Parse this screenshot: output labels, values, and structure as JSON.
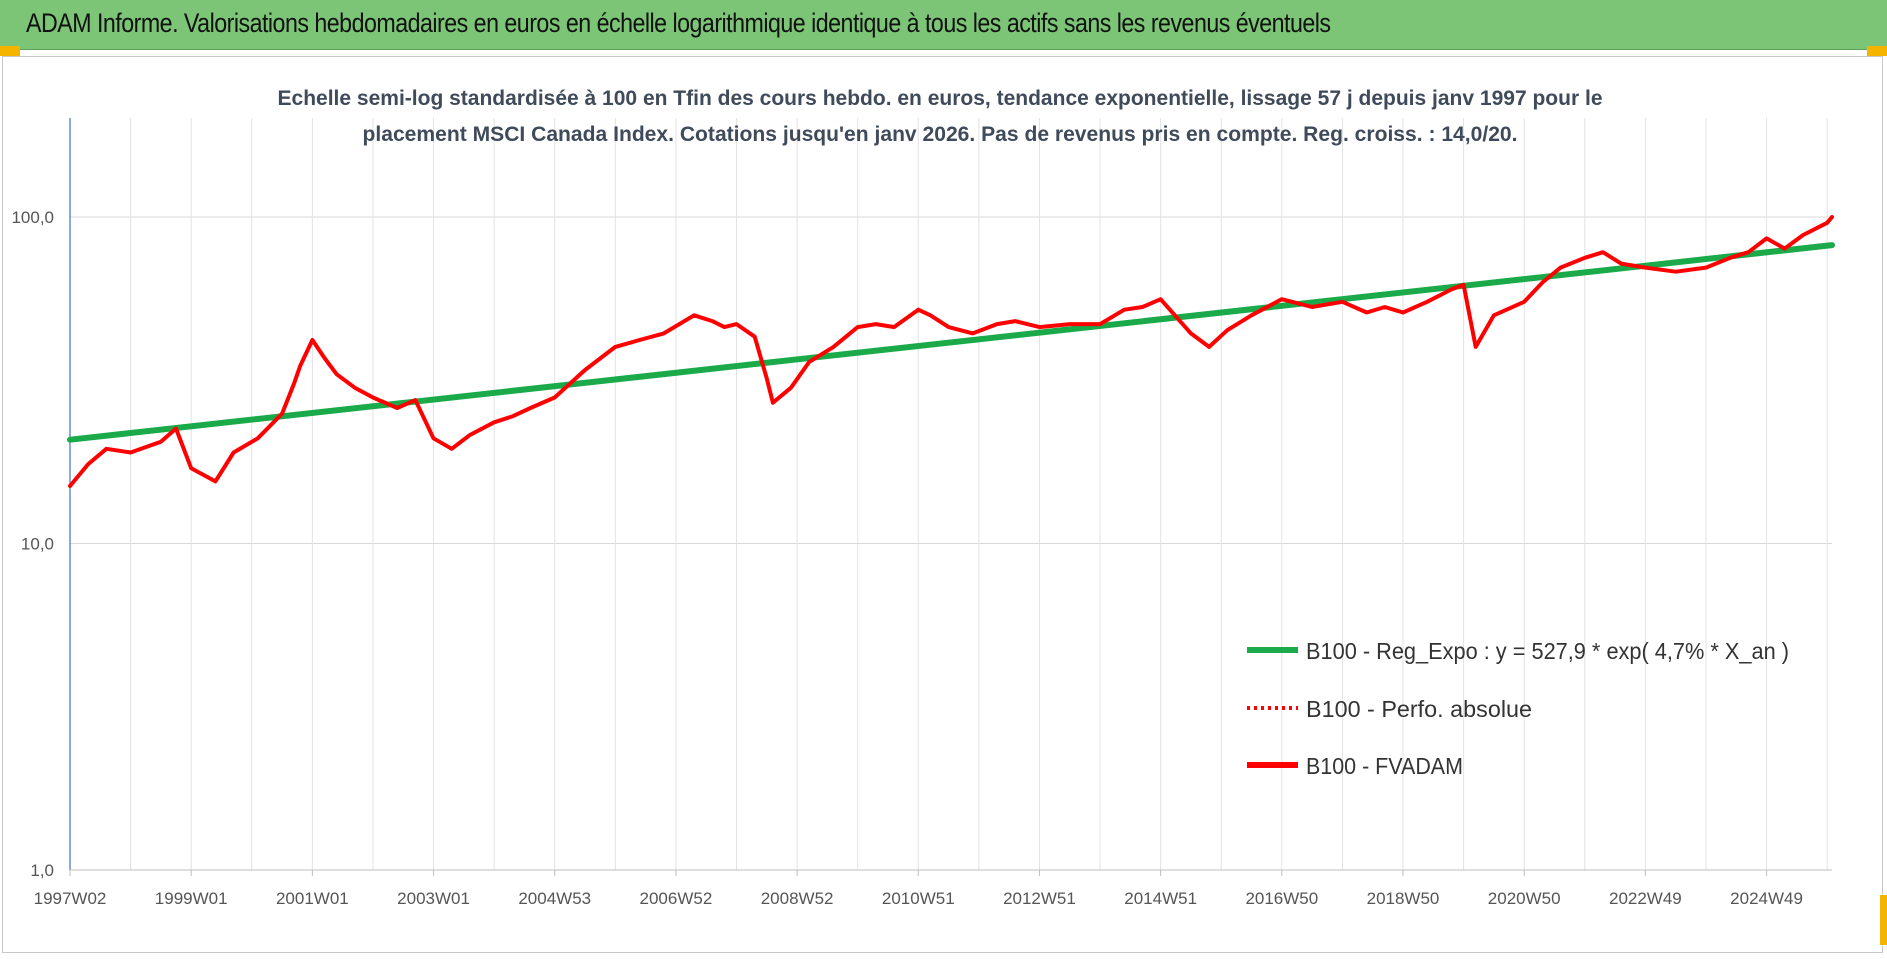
{
  "header": {
    "title": "ADAM Informe. Valorisations hebdomadaires en euros en échelle logarithmique identique à tous les actifs sans les revenus éventuels"
  },
  "colors": {
    "header_bg": "#7cc576",
    "trend": "#1aaa4a",
    "fvadam": "#ff0000",
    "perfo": "#ff0000",
    "grid": "#d9d9d9",
    "accent_corner": "#f5b400"
  },
  "chart_data": {
    "type": "line",
    "title_lines": [
      "Echelle semi-log standardisée à 100 en Tfin des cours hebdo. en euros, tendance exponentielle, lissage 57 j depuis janv 1997 pour le",
      "placement MSCI  Canada Index. Cotations jusqu'en janv 2026. Pas de revenus pris en compte. Reg. croiss. : 14,0/20."
    ],
    "y_scale": "log",
    "ylim": [
      1,
      200
    ],
    "y_ticks": [
      {
        "value": 1,
        "label": "1,0"
      },
      {
        "value": 10,
        "label": "10,0"
      },
      {
        "value": 100,
        "label": "100,0"
      }
    ],
    "xlim": [
      1997.0,
      2026.08
    ],
    "x_ticks": [
      {
        "x": 1997.0,
        "label": "1997W02"
      },
      {
        "x": 1999.0,
        "label": "1999W01"
      },
      {
        "x": 2001.0,
        "label": "2001W01"
      },
      {
        "x": 2003.0,
        "label": "2003W01"
      },
      {
        "x": 2005.0,
        "label": "2004W53"
      },
      {
        "x": 2007.0,
        "label": "2006W52"
      },
      {
        "x": 2009.0,
        "label": "2008W52"
      },
      {
        "x": 2011.0,
        "label": "2010W51"
      },
      {
        "x": 2013.0,
        "label": "2012W51"
      },
      {
        "x": 2015.0,
        "label": "2014W51"
      },
      {
        "x": 2017.0,
        "label": "2016W50"
      },
      {
        "x": 2019.0,
        "label": "2018W50"
      },
      {
        "x": 2021.0,
        "label": "2020W50"
      },
      {
        "x": 2023.0,
        "label": "2022W49"
      },
      {
        "x": 2025.0,
        "label": "2024W49"
      }
    ],
    "grid": true,
    "legend_position": "right",
    "series": [
      {
        "name": "B100 - Reg_Expo : y = 527,9 * exp( 4,7% *  X_an )",
        "style": "solid-thick",
        "x": [
          1997.0,
          2026.08
        ],
        "y": [
          20.8,
          82.0
        ]
      },
      {
        "name": "B100 - Perfo. absolue",
        "style": "dotted",
        "x": [
          1997.0,
          1997.3,
          1997.6,
          1998.0,
          1998.5,
          1998.75,
          1999.0,
          1999.4,
          1999.7,
          2000.1,
          2000.5,
          2000.7,
          2000.8,
          2001.0,
          2001.2,
          2001.4,
          2001.7,
          2002.0,
          2002.4,
          2002.7,
          2003.0,
          2003.3,
          2003.6,
          2004.0,
          2004.3,
          2004.6,
          2005.0,
          2005.5,
          2006.0,
          2006.4,
          2006.8,
          2007.3,
          2007.6,
          2007.8,
          2008.0,
          2008.3,
          2008.5,
          2008.6,
          2008.9,
          2009.2,
          2009.6,
          2010.0,
          2010.3,
          2010.6,
          2011.0,
          2011.2,
          2011.5,
          2011.9,
          2012.3,
          2012.6,
          2013.0,
          2013.5,
          2014.0,
          2014.4,
          2014.7,
          2015.0,
          2015.5,
          2015.8,
          2016.1,
          2016.5,
          2017.0,
          2017.5,
          2018.0,
          2018.4,
          2018.7,
          2019.0,
          2019.4,
          2019.8,
          2020.0,
          2020.2,
          2020.5,
          2021.0,
          2021.3,
          2021.6,
          2022.0,
          2022.3,
          2022.6,
          2023.0,
          2023.5,
          2024.0,
          2024.4,
          2024.7,
          2025.0,
          2025.3,
          2025.6,
          2026.0,
          2026.08
        ],
        "y": [
          15.0,
          17.5,
          19.5,
          19.0,
          20.5,
          22.5,
          17.0,
          15.5,
          19.0,
          21.0,
          25.0,
          31.0,
          35.0,
          42.0,
          37.0,
          33.0,
          30.0,
          28.0,
          26.0,
          27.5,
          21.0,
          19.5,
          21.5,
          23.5,
          24.5,
          26.0,
          28.0,
          34.0,
          40.0,
          42.0,
          44.0,
          50.0,
          48.0,
          46.0,
          47.0,
          43.0,
          32.0,
          27.0,
          30.0,
          36.0,
          40.0,
          46.0,
          47.0,
          46.0,
          52.0,
          50.0,
          46.0,
          44.0,
          47.0,
          48.0,
          46.0,
          47.0,
          47.0,
          52.0,
          53.0,
          56.0,
          44.0,
          40.0,
          45.0,
          50.0,
          56.0,
          53.0,
          55.0,
          51.0,
          53.0,
          51.0,
          55.0,
          60.0,
          62.0,
          40.0,
          50.0,
          55.0,
          63.0,
          70.0,
          75.0,
          78.0,
          72.0,
          70.0,
          68.0,
          70.0,
          75.0,
          78.0,
          86.0,
          80.0,
          88.0,
          96.0,
          100.0
        ]
      },
      {
        "name": "B100 - FVADAM",
        "style": "solid",
        "x": [
          1997.0,
          1997.3,
          1997.6,
          1998.0,
          1998.5,
          1998.75,
          1999.0,
          1999.4,
          1999.7,
          2000.1,
          2000.5,
          2000.7,
          2000.8,
          2001.0,
          2001.2,
          2001.4,
          2001.7,
          2002.0,
          2002.4,
          2002.7,
          2003.0,
          2003.3,
          2003.6,
          2004.0,
          2004.3,
          2004.6,
          2005.0,
          2005.5,
          2006.0,
          2006.4,
          2006.8,
          2007.3,
          2007.6,
          2007.8,
          2008.0,
          2008.3,
          2008.5,
          2008.6,
          2008.9,
          2009.2,
          2009.6,
          2010.0,
          2010.3,
          2010.6,
          2011.0,
          2011.2,
          2011.5,
          2011.9,
          2012.3,
          2012.6,
          2013.0,
          2013.5,
          2014.0,
          2014.4,
          2014.7,
          2015.0,
          2015.5,
          2015.8,
          2016.1,
          2016.5,
          2017.0,
          2017.5,
          2018.0,
          2018.4,
          2018.7,
          2019.0,
          2019.4,
          2019.8,
          2020.0,
          2020.2,
          2020.5,
          2021.0,
          2021.3,
          2021.6,
          2022.0,
          2022.3,
          2022.6,
          2023.0,
          2023.5,
          2024.0,
          2024.4,
          2024.7,
          2025.0,
          2025.3,
          2025.6,
          2026.0,
          2026.08
        ],
        "y": [
          15.0,
          17.5,
          19.5,
          19.0,
          20.5,
          22.5,
          17.0,
          15.5,
          19.0,
          21.0,
          25.0,
          31.0,
          35.0,
          42.0,
          37.0,
          33.0,
          30.0,
          28.0,
          26.0,
          27.5,
          21.0,
          19.5,
          21.5,
          23.5,
          24.5,
          26.0,
          28.0,
          34.0,
          40.0,
          42.0,
          44.0,
          50.0,
          48.0,
          46.0,
          47.0,
          43.0,
          32.0,
          27.0,
          30.0,
          36.0,
          40.0,
          46.0,
          47.0,
          46.0,
          52.0,
          50.0,
          46.0,
          44.0,
          47.0,
          48.0,
          46.0,
          47.0,
          47.0,
          52.0,
          53.0,
          56.0,
          44.0,
          40.0,
          45.0,
          50.0,
          56.0,
          53.0,
          55.0,
          51.0,
          53.0,
          51.0,
          55.0,
          60.0,
          62.0,
          40.0,
          50.0,
          55.0,
          63.0,
          70.0,
          75.0,
          78.0,
          72.0,
          70.0,
          68.0,
          70.0,
          75.0,
          78.0,
          86.0,
          80.0,
          88.0,
          96.0,
          100.0
        ]
      }
    ]
  }
}
